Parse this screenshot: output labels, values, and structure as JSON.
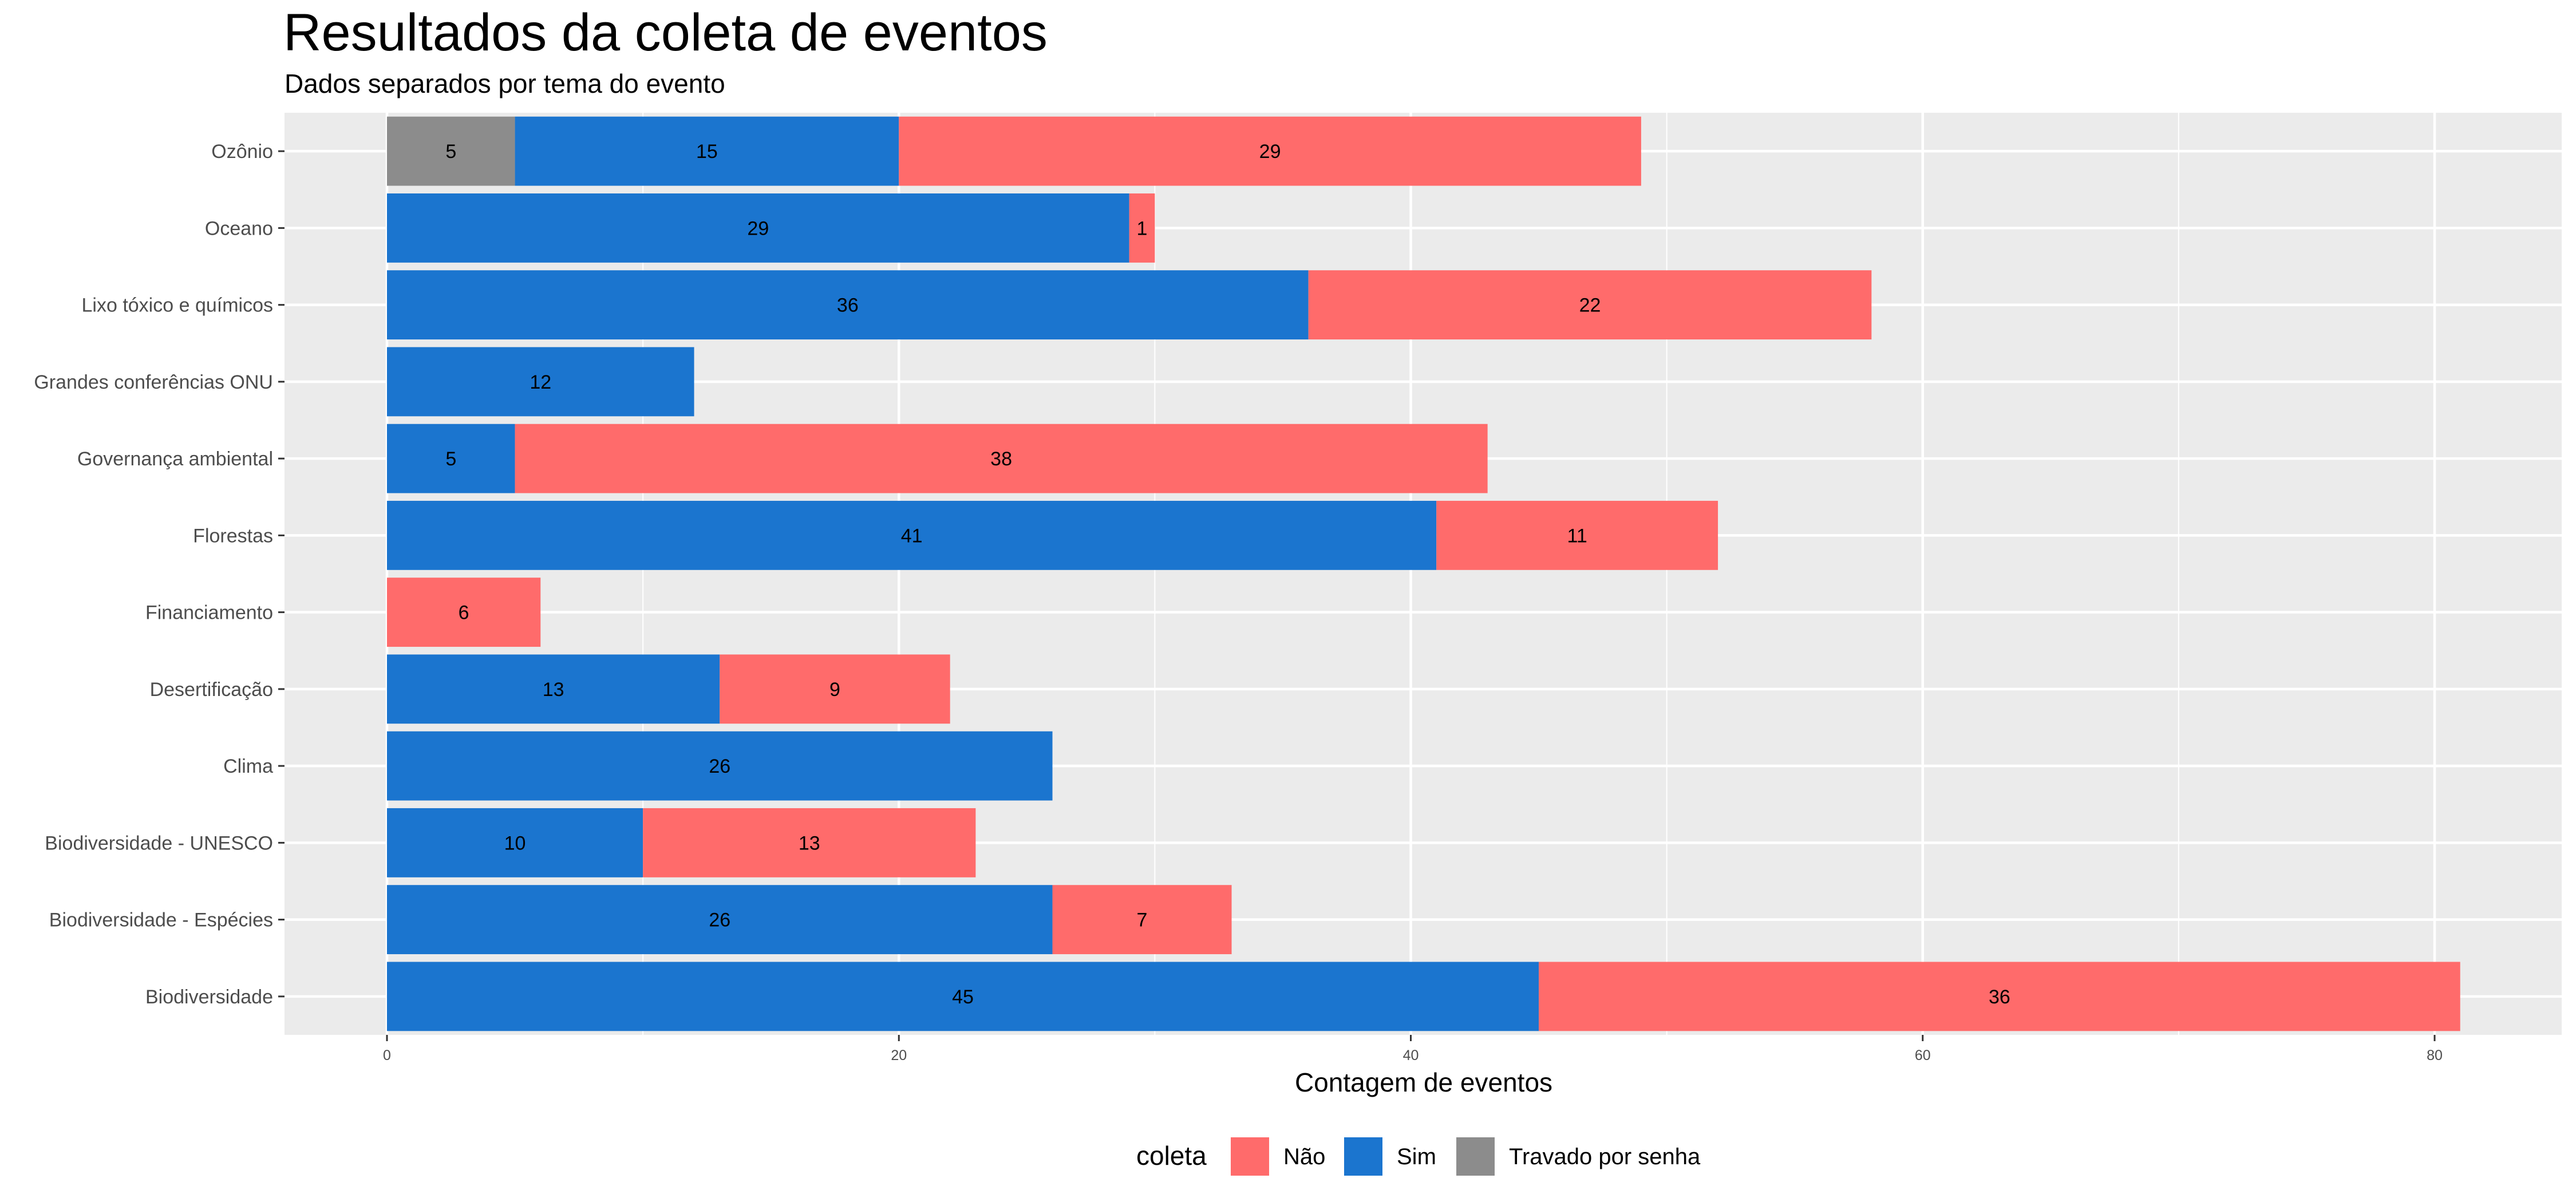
{
  "chart_data": {
    "type": "bar",
    "orientation": "horizontal",
    "stacked": true,
    "title": "Resultados da coleta de eventos",
    "subtitle": "Dados separados por tema do evento",
    "xlabel": "Contagem de eventos",
    "ylabel": "",
    "xlim": [
      0,
      84
    ],
    "xticks": [
      0,
      20,
      40,
      60,
      80
    ],
    "grid": true,
    "legend": {
      "title": "coleta",
      "position": "bottom"
    },
    "categories": [
      "Ozônio",
      "Oceano",
      "Lixo tóxico e químicos",
      "Grandes conferências ONU",
      "Governança ambiental",
      "Florestas",
      "Financiamento",
      "Desertificação",
      "Clima",
      "Biodiversidade - UNESCO",
      "Biodiversidade - Espécies",
      "Biodiversidade"
    ],
    "stack_order": [
      "Travado por senha",
      "Sim",
      "Não"
    ],
    "series": [
      {
        "name": "Não",
        "color": "#FF6B6B",
        "values": [
          29,
          1,
          22,
          0,
          38,
          11,
          6,
          9,
          0,
          13,
          7,
          36
        ]
      },
      {
        "name": "Sim",
        "color": "#1B75CF",
        "values": [
          15,
          29,
          36,
          12,
          5,
          41,
          0,
          13,
          26,
          10,
          26,
          45
        ]
      },
      {
        "name": "Travado por senha",
        "color": "#8C8C8C",
        "values": [
          5,
          0,
          0,
          0,
          0,
          0,
          0,
          0,
          0,
          0,
          0,
          0
        ]
      }
    ]
  }
}
